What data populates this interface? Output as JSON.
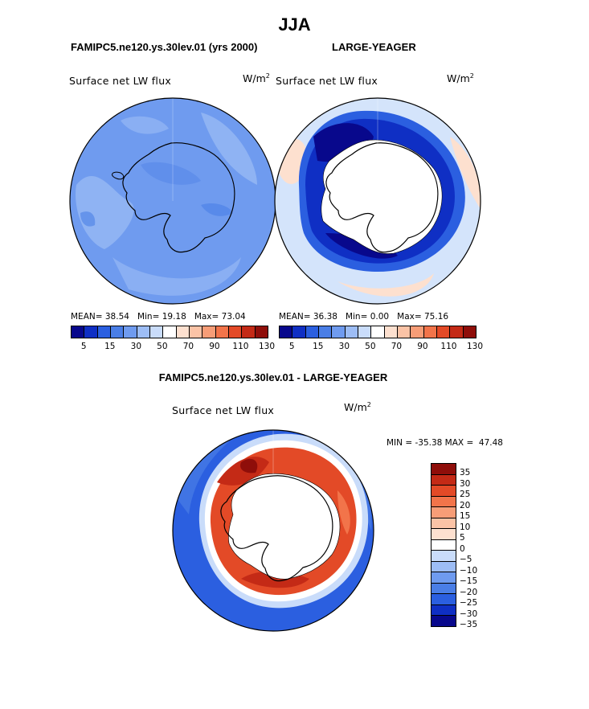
{
  "figure": {
    "season": "JJA",
    "panel_left_title": "FAMIPC5.ne120.ys.30lev.01 (yrs 2000)",
    "panel_right_title": "LARGE-YEAGER",
    "diff_title": "FAMIPC5.ne120.ys.30lev.01 - LARGE-YEAGER"
  },
  "panels": {
    "left": {
      "variable": "Surface net LW flux",
      "unit_base": "W/m",
      "unit_exp": "2",
      "mean_label": "MEAN=",
      "mean": "38.54",
      "min_label": "Min=",
      "min": "19.18",
      "max_label": "Max=",
      "max": "73.04"
    },
    "right": {
      "variable": "Surface net LW flux",
      "unit_base": "W/m",
      "unit_exp": "2",
      "mean_label": "MEAN=",
      "mean": "36.38",
      "min_label": "Min=",
      "min": "0.00",
      "max_label": "Max=",
      "max": "75.16"
    },
    "diff": {
      "variable": "Surface net LW flux",
      "unit_base": "W/m",
      "unit_exp": "2",
      "range_text": "MIN = -35.38 MAX =  47.48"
    }
  },
  "colorbars": {
    "abs": {
      "colors": [
        "#08088c",
        "#0f2fc4",
        "#2b5fe0",
        "#4a7ee6",
        "#6f9bef",
        "#9dbdf5",
        "#c9dcfa",
        "#ffffff",
        "#fde0cf",
        "#fbc3a6",
        "#f79d77",
        "#f2744a",
        "#e34a27",
        "#c42a16",
        "#8f0e0a"
      ],
      "ticks": [
        "5",
        "15",
        "30",
        "50",
        "70",
        "90",
        "110",
        "130"
      ]
    },
    "diff": {
      "colors": [
        "#8f0e0a",
        "#c42a16",
        "#e34a27",
        "#f2744a",
        "#f79d77",
        "#fbc3a6",
        "#fde0cf",
        "#ffffff",
        "#c9dcfa",
        "#9dbdf5",
        "#6f9bef",
        "#4a7ee6",
        "#2b5fe0",
        "#0f2fc4",
        "#08088c"
      ],
      "ticks": [
        "35",
        "30",
        "25",
        "20",
        "15",
        "10",
        "5",
        "0",
        "−5",
        "−10",
        "−15",
        "−20",
        "−25",
        "−30",
        "−35"
      ]
    }
  },
  "palette": {
    "land_fill": "#ffffff",
    "coast_line": "#000000",
    "left_base": "#6f9bef",
    "left_light": "#9dbdf5"
  }
}
